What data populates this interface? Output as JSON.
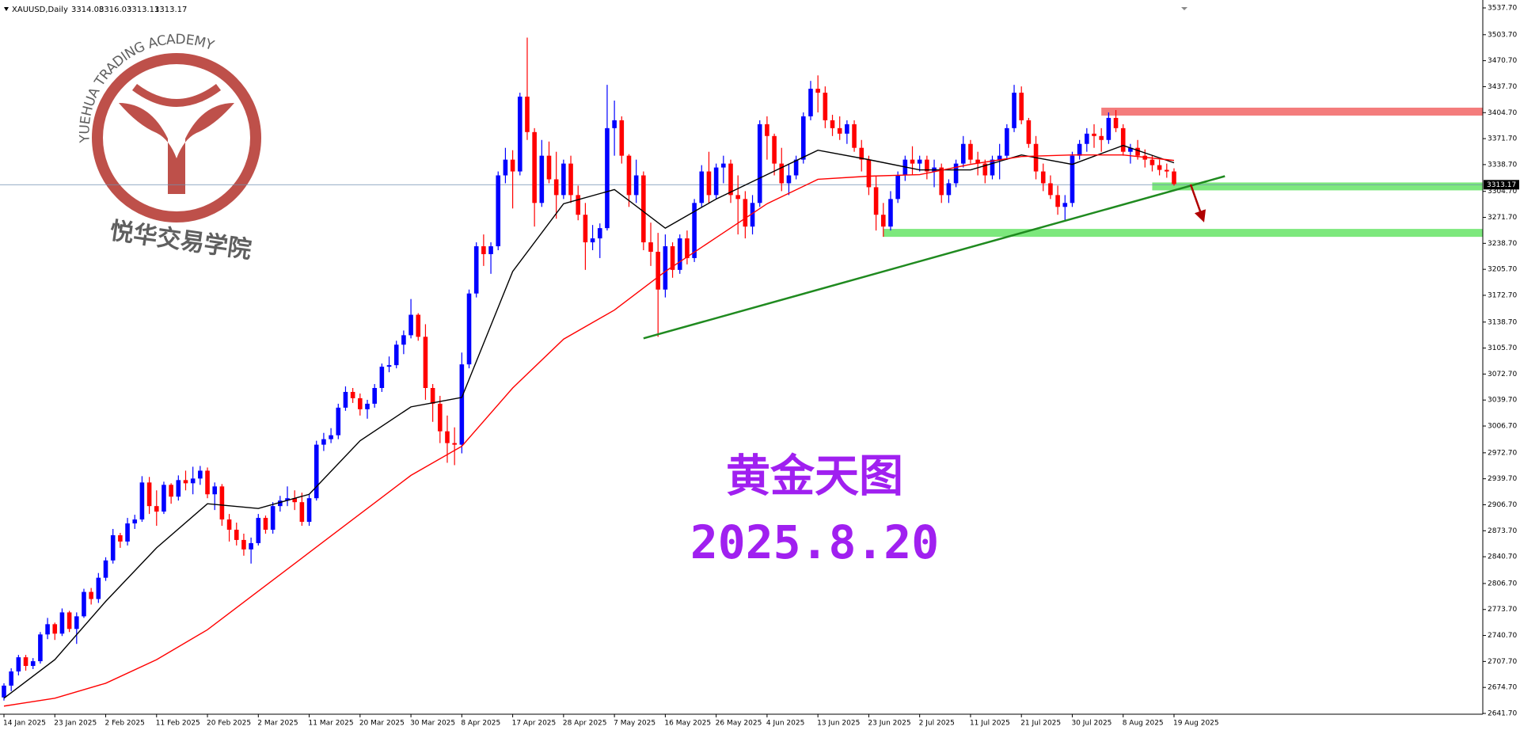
{
  "chart_data": {
    "type": "candlestick",
    "header": {
      "symbol": "XAUUSD,Daily",
      "open": 3314.08,
      "high": 3316.03,
      "low": 3313.11,
      "close": 3313.17
    },
    "last_price": 3313.17,
    "title": "黄金天图",
    "date_label": "2025.8.20",
    "watermark": {
      "en": "YUEHUA TRADING ACADEMY",
      "cn": "悦华交易学院"
    },
    "up_color": "#0000ff",
    "down_color": "#ff0000",
    "ylim": [
      2641.7,
      3537.7
    ],
    "yticks": [
      {
        "value": 3537.7,
        "label": "3537.70"
      },
      {
        "value": 3503.7,
        "label": "3503.70"
      },
      {
        "value": 3470.7,
        "label": "3470.70"
      },
      {
        "value": 3437.7,
        "label": "3437.70"
      },
      {
        "value": 3404.7,
        "label": "3404.70"
      },
      {
        "value": 3371.7,
        "label": "3371.70"
      },
      {
        "value": 3338.7,
        "label": "3338.70"
      },
      {
        "value": 3304.7,
        "label": "3304.70"
      },
      {
        "value": 3271.7,
        "label": "3271.70"
      },
      {
        "value": 3238.7,
        "label": "3238.70"
      },
      {
        "value": 3205.7,
        "label": "3205.70"
      },
      {
        "value": 3172.7,
        "label": "3172.70"
      },
      {
        "value": 3138.7,
        "label": "3138.70"
      },
      {
        "value": 3105.7,
        "label": "3105.70"
      },
      {
        "value": 3072.7,
        "label": "3072.70"
      },
      {
        "value": 3039.7,
        "label": "3039.70"
      },
      {
        "value": 3006.7,
        "label": "3006.70"
      },
      {
        "value": 2972.7,
        "label": "2972.70"
      },
      {
        "value": 2939.7,
        "label": "2939.70"
      },
      {
        "value": 2906.7,
        "label": "2906.70"
      },
      {
        "value": 2873.7,
        "label": "2873.70"
      },
      {
        "value": 2840.7,
        "label": "2840.70"
      },
      {
        "value": 2806.7,
        "label": "2806.70"
      },
      {
        "value": 2773.7,
        "label": "2773.70"
      },
      {
        "value": 2740.7,
        "label": "2740.70"
      },
      {
        "value": 2707.7,
        "label": "2707.70"
      },
      {
        "value": 2674.7,
        "label": "2674.70"
      },
      {
        "value": 2641.7,
        "label": "2641.70"
      }
    ],
    "xticks": [
      {
        "value": 0,
        "label": "14 Jan 2025"
      },
      {
        "value": 7,
        "label": "23 Jan 2025"
      },
      {
        "value": 14,
        "label": "2 Feb 2025"
      },
      {
        "value": 21,
        "label": "11 Feb 2025"
      },
      {
        "value": 28,
        "label": "20 Feb 2025"
      },
      {
        "value": 35,
        "label": "2 Mar 2025"
      },
      {
        "value": 42,
        "label": "11 Mar 2025"
      },
      {
        "value": 49,
        "label": "20 Mar 2025"
      },
      {
        "value": 56,
        "label": "30 Mar 2025"
      },
      {
        "value": 63,
        "label": "8 Apr 2025"
      },
      {
        "value": 70,
        "label": "17 Apr 2025"
      },
      {
        "value": 77,
        "label": "28 Apr 2025"
      },
      {
        "value": 84,
        "label": "7 May 2025"
      },
      {
        "value": 91,
        "label": "16 May 2025"
      },
      {
        "value": 98,
        "label": "26 May 2025"
      },
      {
        "value": 105,
        "label": "4 Jun 2025"
      },
      {
        "value": 112,
        "label": "13 Jun 2025"
      },
      {
        "value": 119,
        "label": "23 Jun 2025"
      },
      {
        "value": 126,
        "label": "2 Jul 2025"
      },
      {
        "value": 133,
        "label": "11 Jul 2025"
      },
      {
        "value": 140,
        "label": "21 Jul 2025"
      },
      {
        "value": 147,
        "label": "30 Jul 2025"
      },
      {
        "value": 154,
        "label": "8 Aug 2025"
      },
      {
        "value": 161,
        "label": "19 Aug 2025"
      }
    ],
    "ohlc": [
      [
        2662,
        2680,
        2658,
        2677
      ],
      [
        2677,
        2699,
        2670,
        2695
      ],
      [
        2695,
        2716,
        2690,
        2713
      ],
      [
        2713,
        2716,
        2696,
        2702
      ],
      [
        2702,
        2712,
        2698,
        2708
      ],
      [
        2708,
        2745,
        2705,
        2742
      ],
      [
        2742,
        2763,
        2736,
        2755
      ],
      [
        2755,
        2757,
        2735,
        2743
      ],
      [
        2743,
        2775,
        2740,
        2770
      ],
      [
        2770,
        2772,
        2745,
        2749
      ],
      [
        2749,
        2770,
        2730,
        2765
      ],
      [
        2765,
        2800,
        2763,
        2796
      ],
      [
        2796,
        2801,
        2780,
        2787
      ],
      [
        2787,
        2820,
        2782,
        2814
      ],
      [
        2814,
        2840,
        2810,
        2836
      ],
      [
        2836,
        2876,
        2832,
        2868
      ],
      [
        2868,
        2871,
        2852,
        2860
      ],
      [
        2860,
        2890,
        2855,
        2883
      ],
      [
        2883,
        2894,
        2876,
        2888
      ],
      [
        2888,
        2943,
        2885,
        2935
      ],
      [
        2935,
        2942,
        2895,
        2905
      ],
      [
        2905,
        2925,
        2880,
        2898
      ],
      [
        2898,
        2936,
        2895,
        2932
      ],
      [
        2932,
        2934,
        2908,
        2917
      ],
      [
        2917,
        2944,
        2912,
        2938
      ],
      [
        2938,
        2950,
        2925,
        2934
      ],
      [
        2934,
        2955,
        2920,
        2940
      ],
      [
        2940,
        2956,
        2932,
        2950
      ],
      [
        2950,
        2954,
        2915,
        2920
      ],
      [
        2920,
        2935,
        2900,
        2930
      ],
      [
        2930,
        2933,
        2880,
        2888
      ],
      [
        2888,
        2895,
        2860,
        2875
      ],
      [
        2875,
        2884,
        2855,
        2862
      ],
      [
        2862,
        2870,
        2842,
        2850
      ],
      [
        2850,
        2865,
        2832,
        2858
      ],
      [
        2858,
        2895,
        2855,
        2890
      ],
      [
        2890,
        2893,
        2870,
        2875
      ],
      [
        2875,
        2910,
        2870,
        2905
      ],
      [
        2905,
        2918,
        2898,
        2912
      ],
      [
        2912,
        2930,
        2905,
        2915
      ],
      [
        2915,
        2925,
        2900,
        2910
      ],
      [
        2910,
        2922,
        2880,
        2885
      ],
      [
        2885,
        2920,
        2880,
        2915
      ],
      [
        2915,
        2988,
        2912,
        2983
      ],
      [
        2983,
        2998,
        2975,
        2990
      ],
      [
        2990,
        3004,
        2985,
        2995
      ],
      [
        2995,
        3035,
        2990,
        3030
      ],
      [
        3030,
        3057,
        3026,
        3050
      ],
      [
        3050,
        3055,
        3036,
        3042
      ],
      [
        3042,
        3048,
        3020,
        3028
      ],
      [
        3028,
        3040,
        3016,
        3035
      ],
      [
        3035,
        3060,
        3030,
        3055
      ],
      [
        3055,
        3086,
        3050,
        3082
      ],
      [
        3082,
        3095,
        3075,
        3084
      ],
      [
        3084,
        3115,
        3080,
        3110
      ],
      [
        3110,
        3128,
        3098,
        3122
      ],
      [
        3122,
        3168,
        3118,
        3148
      ],
      [
        3148,
        3150,
        3115,
        3120
      ],
      [
        3120,
        3136,
        3040,
        3055
      ],
      [
        3055,
        3060,
        3012,
        3035
      ],
      [
        3035,
        3045,
        2985,
        3000
      ],
      [
        3000,
        3020,
        2960,
        2985
      ],
      [
        2985,
        3005,
        2957,
        2983
      ],
      [
        2983,
        3100,
        2972,
        3085
      ],
      [
        3085,
        3180,
        3080,
        3175
      ],
      [
        3175,
        3240,
        3170,
        3235
      ],
      [
        3235,
        3250,
        3210,
        3225
      ],
      [
        3225,
        3240,
        3200,
        3235
      ],
      [
        3235,
        3330,
        3230,
        3325
      ],
      [
        3325,
        3360,
        3315,
        3345
      ],
      [
        3345,
        3357,
        3283,
        3330
      ],
      [
        3330,
        3430,
        3325,
        3425
      ],
      [
        3425,
        3500,
        3370,
        3380
      ],
      [
        3380,
        3385,
        3260,
        3290
      ],
      [
        3290,
        3370,
        3285,
        3350
      ],
      [
        3350,
        3368,
        3315,
        3320
      ],
      [
        3320,
        3355,
        3270,
        3300
      ],
      [
        3300,
        3345,
        3295,
        3340
      ],
      [
        3340,
        3350,
        3290,
        3300
      ],
      [
        3300,
        3312,
        3268,
        3275
      ],
      [
        3275,
        3290,
        3205,
        3240
      ],
      [
        3240,
        3262,
        3230,
        3245
      ],
      [
        3245,
        3264,
        3220,
        3258
      ],
      [
        3258,
        3440,
        3255,
        3385
      ],
      [
        3385,
        3420,
        3350,
        3395
      ],
      [
        3395,
        3400,
        3340,
        3350
      ],
      [
        3350,
        3352,
        3285,
        3300
      ],
      [
        3300,
        3345,
        3290,
        3325
      ],
      [
        3325,
        3330,
        3230,
        3240
      ],
      [
        3240,
        3265,
        3210,
        3228
      ],
      [
        3228,
        3252,
        3120,
        3180
      ],
      [
        3180,
        3250,
        3170,
        3235
      ],
      [
        3235,
        3240,
        3195,
        3205
      ],
      [
        3205,
        3250,
        3200,
        3245
      ],
      [
        3245,
        3255,
        3212,
        3220
      ],
      [
        3220,
        3295,
        3215,
        3290
      ],
      [
        3290,
        3338,
        3285,
        3330
      ],
      [
        3330,
        3355,
        3290,
        3300
      ],
      [
        3300,
        3340,
        3295,
        3335
      ],
      [
        3335,
        3350,
        3315,
        3340
      ],
      [
        3340,
        3345,
        3290,
        3300
      ],
      [
        3300,
        3325,
        3250,
        3295
      ],
      [
        3295,
        3305,
        3245,
        3260
      ],
      [
        3260,
        3300,
        3250,
        3290
      ],
      [
        3290,
        3395,
        3285,
        3390
      ],
      [
        3390,
        3400,
        3345,
        3375
      ],
      [
        3375,
        3378,
        3325,
        3340
      ],
      [
        3340,
        3360,
        3305,
        3315
      ],
      [
        3315,
        3340,
        3300,
        3325
      ],
      [
        3325,
        3350,
        3320,
        3345
      ],
      [
        3345,
        3405,
        3340,
        3400
      ],
      [
        3400,
        3445,
        3395,
        3435
      ],
      [
        3435,
        3452,
        3405,
        3430
      ],
      [
        3430,
        3438,
        3385,
        3395
      ],
      [
        3395,
        3402,
        3375,
        3385
      ],
      [
        3385,
        3400,
        3370,
        3378
      ],
      [
        3378,
        3395,
        3365,
        3390
      ],
      [
        3390,
        3395,
        3355,
        3360
      ],
      [
        3360,
        3370,
        3330,
        3345
      ],
      [
        3345,
        3350,
        3300,
        3310
      ],
      [
        3310,
        3325,
        3255,
        3275
      ],
      [
        3275,
        3290,
        3247,
        3260
      ],
      [
        3260,
        3305,
        3255,
        3295
      ],
      [
        3295,
        3330,
        3290,
        3325
      ],
      [
        3325,
        3350,
        3318,
        3345
      ],
      [
        3345,
        3362,
        3325,
        3340
      ],
      [
        3340,
        3350,
        3330,
        3345
      ],
      [
        3345,
        3350,
        3320,
        3330
      ],
      [
        3330,
        3345,
        3310,
        3335
      ],
      [
        3335,
        3340,
        3290,
        3300
      ],
      [
        3300,
        3320,
        3290,
        3315
      ],
      [
        3315,
        3345,
        3310,
        3340
      ],
      [
        3340,
        3375,
        3335,
        3365
      ],
      [
        3365,
        3370,
        3340,
        3345
      ],
      [
        3345,
        3355,
        3325,
        3340
      ],
      [
        3340,
        3345,
        3315,
        3325
      ],
      [
        3325,
        3350,
        3320,
        3345
      ],
      [
        3345,
        3365,
        3320,
        3350
      ],
      [
        3350,
        3390,
        3345,
        3385
      ],
      [
        3385,
        3440,
        3380,
        3430
      ],
      [
        3430,
        3438,
        3390,
        3395
      ],
      [
        3395,
        3398,
        3360,
        3365
      ],
      [
        3365,
        3375,
        3320,
        3330
      ],
      [
        3330,
        3340,
        3305,
        3315
      ],
      [
        3315,
        3325,
        3295,
        3300
      ],
      [
        3300,
        3312,
        3275,
        3285
      ],
      [
        3285,
        3300,
        3268,
        3290
      ],
      [
        3290,
        3355,
        3285,
        3350
      ],
      [
        3350,
        3370,
        3345,
        3365
      ],
      [
        3365,
        3385,
        3355,
        3378
      ],
      [
        3378,
        3390,
        3360,
        3375
      ],
      [
        3375,
        3385,
        3355,
        3370
      ],
      [
        3370,
        3405,
        3365,
        3398
      ],
      [
        3398,
        3408,
        3380,
        3385
      ],
      [
        3385,
        3390,
        3350,
        3355
      ],
      [
        3355,
        3365,
        3340,
        3360
      ],
      [
        3360,
        3370,
        3345,
        3350
      ],
      [
        3350,
        3358,
        3335,
        3345
      ],
      [
        3345,
        3350,
        3330,
        3338
      ],
      [
        3338,
        3345,
        3325,
        3332
      ],
      [
        3332,
        3340,
        3322,
        3330
      ],
      [
        3330,
        3334,
        3312,
        3314
      ]
    ],
    "ma_lines": [
      {
        "color": "#000000",
        "x": [
          0,
          7,
          14,
          21,
          28,
          35,
          42,
          49,
          56,
          63,
          70,
          77,
          84,
          91,
          98,
          105,
          112,
          119,
          126,
          133,
          140,
          147,
          154,
          161
        ],
        "values": [
          2661,
          2710,
          2784,
          2852,
          2908,
          2902,
          2920,
          2988,
          3031,
          3043,
          3203,
          3289,
          3307,
          3258,
          3295,
          3326,
          3357,
          3345,
          3332,
          3332,
          3351,
          3339,
          3363,
          3341
        ]
      },
      {
        "color": "#ff0000",
        "x": [
          0,
          7,
          14,
          21,
          28,
          35,
          42,
          49,
          56,
          63,
          70,
          77,
          84,
          91,
          98,
          105,
          112,
          119,
          126,
          133,
          140,
          147,
          154,
          161
        ],
        "values": [
          2651,
          2661,
          2680,
          2710,
          2748,
          2797,
          2846,
          2895,
          2944,
          2981,
          3055,
          3117,
          3154,
          3203,
          3246,
          3289,
          3320,
          3324,
          3326,
          3339,
          3349,
          3351,
          3351,
          3344
        ]
      }
    ],
    "zones": [
      {
        "value": 3406,
        "start": 151,
        "color": "#f47c7c"
      },
      {
        "value": 3311,
        "start": 158,
        "color": "#7de87d"
      },
      {
        "value": 3252,
        "start": 121,
        "color": "#7de87d"
      }
    ],
    "trendline": {
      "color": "#1f8a1f",
      "x": [
        88,
        168
      ],
      "values": [
        3118,
        3324
      ]
    }
  }
}
